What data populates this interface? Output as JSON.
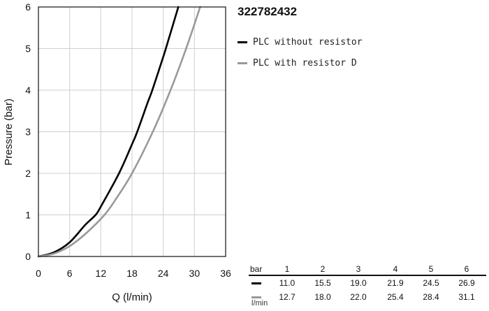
{
  "chart_data": {
    "type": "line",
    "title": "322782432",
    "xlabel": "Q (l/min)",
    "ylabel": "Pressure (bar)",
    "xlim": [
      0,
      36
    ],
    "ylim": [
      0,
      6
    ],
    "x_ticks": [
      "0",
      "6",
      "12",
      "18",
      "24",
      "30",
      "36"
    ],
    "y_ticks": [
      "0",
      "1",
      "2",
      "3",
      "4",
      "5",
      "6"
    ],
    "grid": true,
    "legend_position": "right",
    "series": [
      {
        "name": "PLC without resistor",
        "color": "#000000",
        "points": [
          [
            0,
            0
          ],
          [
            3,
            0.1
          ],
          [
            6,
            0.34
          ],
          [
            9,
            0.76
          ],
          [
            11.0,
            1.0
          ],
          [
            12,
            1.2
          ],
          [
            15.5,
            2.0
          ],
          [
            18,
            2.7
          ],
          [
            19.0,
            3.0
          ],
          [
            21,
            3.7
          ],
          [
            21.9,
            4.0
          ],
          [
            24,
            4.8
          ],
          [
            24.5,
            5.0
          ],
          [
            26.9,
            6.0
          ]
        ]
      },
      {
        "name": "PLC with resistor D",
        "color": "#999999",
        "points": [
          [
            0,
            0
          ],
          [
            3,
            0.07
          ],
          [
            6,
            0.25
          ],
          [
            9,
            0.54
          ],
          [
            12.7,
            1.0
          ],
          [
            15,
            1.4
          ],
          [
            18.0,
            2.0
          ],
          [
            22.0,
            3.0
          ],
          [
            25.4,
            4.0
          ],
          [
            28.4,
            5.0
          ],
          [
            31.1,
            6.0
          ]
        ]
      }
    ]
  },
  "table": {
    "header_label": "bar",
    "pressures": [
      "1",
      "2",
      "3",
      "4",
      "5",
      "6"
    ],
    "rows": [
      {
        "color": "#000000",
        "values": [
          "11.0",
          "15.5",
          "19.0",
          "21.9",
          "24.5",
          "26.9"
        ]
      },
      {
        "color": "#999999",
        "values": [
          "12.7",
          "18.0",
          "22.0",
          "25.4",
          "28.4",
          "31.1"
        ]
      }
    ],
    "units_label": "l/min"
  }
}
